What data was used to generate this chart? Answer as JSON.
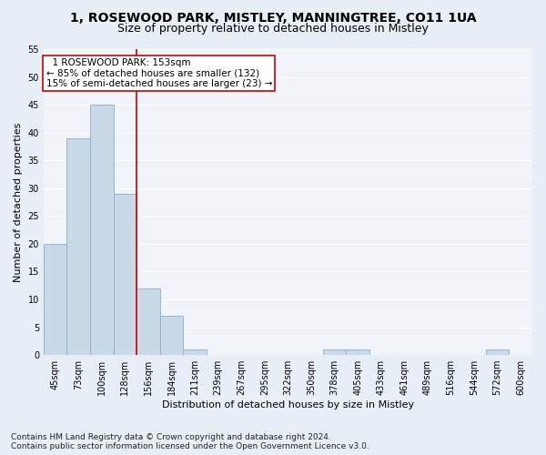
{
  "title_line1": "1, ROSEWOOD PARK, MISTLEY, MANNINGTREE, CO11 1UA",
  "title_line2": "Size of property relative to detached houses in Mistley",
  "xlabel": "Distribution of detached houses by size in Mistley",
  "ylabel": "Number of detached properties",
  "footnote1": "Contains HM Land Registry data © Crown copyright and database right 2024.",
  "footnote2": "Contains public sector information licensed under the Open Government Licence v3.0.",
  "bin_labels": [
    "45sqm",
    "73sqm",
    "100sqm",
    "128sqm",
    "156sqm",
    "184sqm",
    "211sqm",
    "239sqm",
    "267sqm",
    "295sqm",
    "322sqm",
    "350sqm",
    "378sqm",
    "405sqm",
    "433sqm",
    "461sqm",
    "489sqm",
    "516sqm",
    "544sqm",
    "572sqm",
    "600sqm"
  ],
  "bar_values": [
    20,
    39,
    45,
    29,
    12,
    7,
    1,
    0,
    0,
    0,
    0,
    0,
    1,
    1,
    0,
    0,
    0,
    0,
    0,
    1,
    0
  ],
  "bar_color": "#c9d9e8",
  "bar_edgecolor": "#8aaecc",
  "vline_color": "#cc0000",
  "vline_x_index": 4,
  "annotation_line1": "  1 ROSEWOOD PARK: 153sqm",
  "annotation_line2": "← 85% of detached houses are smaller (132)",
  "annotation_line3": "15% of semi-detached houses are larger (23) →",
  "annotation_box_edgecolor": "#cc0000",
  "annotation_box_facecolor": "#ffffff",
  "ylim": [
    0,
    55
  ],
  "yticks": [
    0,
    5,
    10,
    15,
    20,
    25,
    30,
    35,
    40,
    45,
    50,
    55
  ],
  "bg_color": "#e8eef5",
  "plot_bg_color": "#f0f4f8",
  "grid_color": "#ffffff",
  "title1_fontsize": 10,
  "title2_fontsize": 9,
  "axis_label_fontsize": 8,
  "tick_fontsize": 7,
  "annotation_fontsize": 7.5,
  "footnote_fontsize": 6.5
}
